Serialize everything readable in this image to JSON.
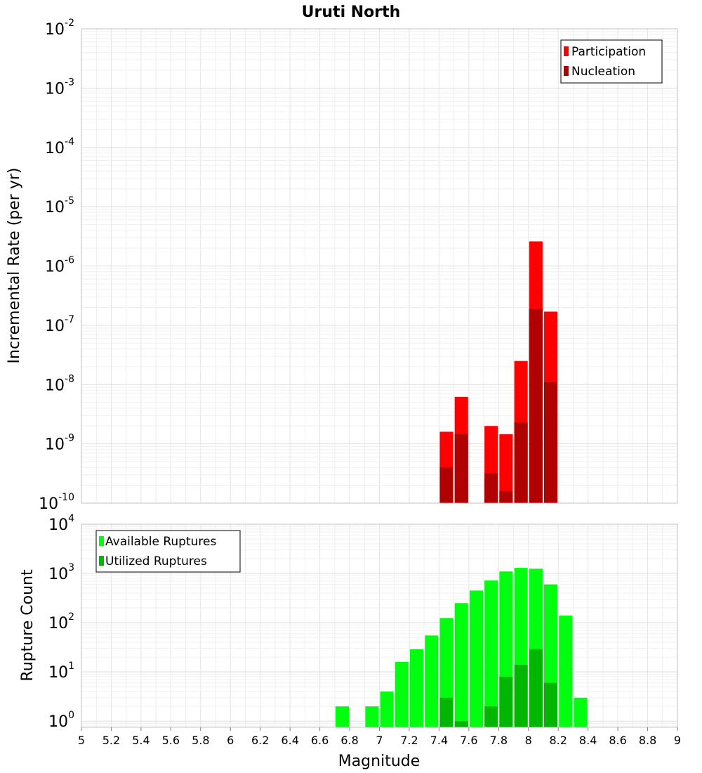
{
  "chart_data": [
    {
      "type": "bar",
      "title": "Uruti North",
      "ylabel": "Incremental Rate (per yr)",
      "xlabel": "",
      "xlim": [
        5,
        9
      ],
      "ylim": [
        1e-10,
        0.01
      ],
      "yscale": "log",
      "ytick_exponents": [
        "-10",
        "-9",
        "-8",
        "-7",
        "-6",
        "-5",
        "-4",
        "-3",
        "-2"
      ],
      "bar_width": 0.09,
      "grid": true,
      "legend_position": "top-right",
      "series": [
        {
          "name": "Participation",
          "color": "#ff0000",
          "points": [
            {
              "x": 7.45,
              "y": 1.6e-09
            },
            {
              "x": 7.55,
              "y": 6.2e-09
            },
            {
              "x": 7.75,
              "y": 2e-09
            },
            {
              "x": 7.85,
              "y": 1.45e-09
            },
            {
              "x": 7.95,
              "y": 2.5e-08
            },
            {
              "x": 8.05,
              "y": 2.6e-06
            },
            {
              "x": 8.15,
              "y": 1.7e-07
            }
          ]
        },
        {
          "name": "Nucleation",
          "color": "#b00000",
          "points": [
            {
              "x": 7.45,
              "y": 4e-10
            },
            {
              "x": 7.55,
              "y": 1.45e-09
            },
            {
              "x": 7.75,
              "y": 3.2e-10
            },
            {
              "x": 7.85,
              "y": 1.6e-10
            },
            {
              "x": 7.95,
              "y": 2.3e-09
            },
            {
              "x": 8.05,
              "y": 1.9e-07
            },
            {
              "x": 8.15,
              "y": 1.1e-08
            }
          ]
        }
      ]
    },
    {
      "type": "bar",
      "title": "",
      "ylabel": "Rupture Count",
      "xlabel": "Magnitude",
      "xlim": [
        5,
        9
      ],
      "ylim": [
        0.75,
        10000
      ],
      "yscale": "log",
      "ytick_exponents": [
        "0",
        "1",
        "2",
        "3",
        "4"
      ],
      "xticks": [
        "5",
        "5.2",
        "5.4",
        "5.6",
        "5.8",
        "6",
        "6.2",
        "6.4",
        "6.6",
        "6.8",
        "7",
        "7.2",
        "7.4",
        "7.6",
        "7.8",
        "8",
        "8.2",
        "8.4",
        "8.6",
        "8.8",
        "9"
      ],
      "bar_width": 0.09,
      "grid": true,
      "legend_position": "top-left",
      "series": [
        {
          "name": "Available Ruptures",
          "color": "#00ff0f",
          "points": [
            {
              "x": 6.75,
              "y": 2
            },
            {
              "x": 6.95,
              "y": 2
            },
            {
              "x": 7.05,
              "y": 4
            },
            {
              "x": 7.15,
              "y": 16
            },
            {
              "x": 7.25,
              "y": 29
            },
            {
              "x": 7.35,
              "y": 55
            },
            {
              "x": 7.45,
              "y": 125
            },
            {
              "x": 7.55,
              "y": 250
            },
            {
              "x": 7.65,
              "y": 450
            },
            {
              "x": 7.75,
              "y": 720
            },
            {
              "x": 7.85,
              "y": 1100
            },
            {
              "x": 7.95,
              "y": 1300
            },
            {
              "x": 8.05,
              "y": 1250
            },
            {
              "x": 8.15,
              "y": 600
            },
            {
              "x": 8.25,
              "y": 140
            },
            {
              "x": 8.35,
              "y": 3
            }
          ]
        },
        {
          "name": "Utilized Ruptures",
          "color": "#00b600",
          "points": [
            {
              "x": 7.45,
              "y": 3
            },
            {
              "x": 7.55,
              "y": 1
            },
            {
              "x": 7.75,
              "y": 2
            },
            {
              "x": 7.85,
              "y": 8
            },
            {
              "x": 7.95,
              "y": 14
            },
            {
              "x": 8.05,
              "y": 29
            },
            {
              "x": 8.15,
              "y": 6
            }
          ]
        }
      ]
    }
  ]
}
